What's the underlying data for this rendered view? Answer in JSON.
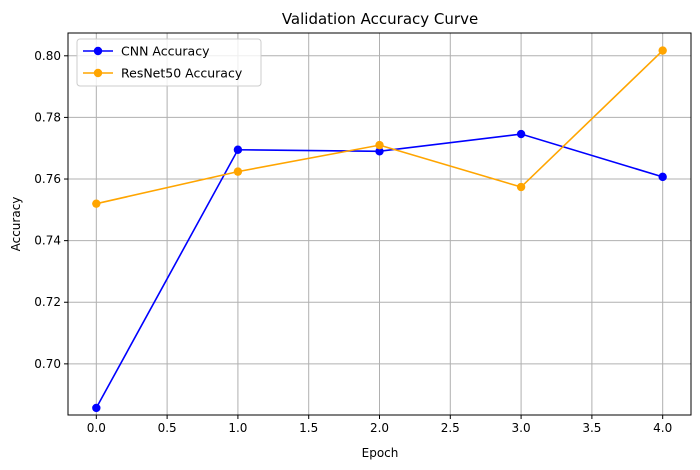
{
  "chart_data": {
    "type": "line",
    "title": "Validation Accuracy Curve",
    "xlabel": "Epoch",
    "ylabel": "Accuracy",
    "x": [
      0,
      1,
      2,
      3,
      4
    ],
    "xlim": [
      -0.2,
      4.2
    ],
    "ylim": [
      0.6834,
      0.8074
    ],
    "xticks": [
      0.0,
      0.5,
      1.0,
      1.5,
      2.0,
      2.5,
      3.0,
      3.5,
      4.0
    ],
    "xtick_labels": [
      "0.0",
      "0.5",
      "1.0",
      "1.5",
      "2.0",
      "2.5",
      "3.0",
      "3.5",
      "4.0"
    ],
    "yticks": [
      0.7,
      0.72,
      0.74,
      0.76,
      0.78,
      0.8
    ],
    "ytick_labels": [
      "0.70",
      "0.72",
      "0.74",
      "0.76",
      "0.78",
      "0.80"
    ],
    "grid": true,
    "legend_position": "top-left",
    "series": [
      {
        "name": "CNN Accuracy",
        "color": "#0000ff",
        "marker": "circle",
        "values": [
          0.6857,
          0.7695,
          0.769,
          0.7746,
          0.7607
        ]
      },
      {
        "name": "ResNet50 Accuracy",
        "color": "#ffa500",
        "marker": "circle",
        "values": [
          0.752,
          0.7624,
          0.771,
          0.7574,
          0.8017
        ]
      }
    ]
  }
}
